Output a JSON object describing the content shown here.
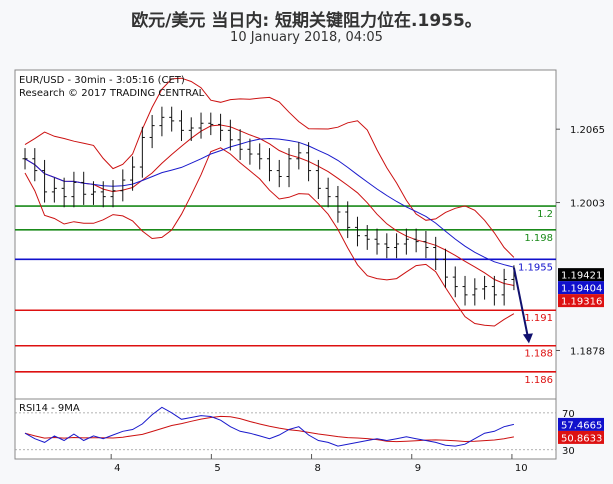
{
  "header": {
    "title": "欧元/美元 当日内: 短期关键阻力位在.1955。",
    "date": "10 January 2018, 04:05"
  },
  "chart_data": {
    "type": "candlestick",
    "symbol_line": "EUR/USD - 30min - 3:05:16 (CET)",
    "source_line": "Research © 2017 TRADING CENTRAL",
    "y_ticks": [
      "1.2065",
      "1.2003",
      "1.1878"
    ],
    "y_tick_values": [
      1.2065,
      1.2003,
      1.1878
    ],
    "ylim": [
      1.1837,
      1.2115
    ],
    "x_ticks": [
      "4",
      "5",
      "8",
      "9",
      "10"
    ],
    "x_tick_positions": [
      9.6,
      19.6,
      29.6,
      39.6,
      49.6
    ],
    "xlim": [
      0,
      54
    ],
    "levels": [
      {
        "label": "1.2",
        "value": 1.2,
        "color": "#1a8a1a"
      },
      {
        "label": "1.198",
        "value": 1.198,
        "color": "#1a8a1a"
      },
      {
        "label": "1.1955",
        "value": 1.1955,
        "color": "#1010cc"
      },
      {
        "label": "1.191",
        "value": 1.1912,
        "color": "#dd1111"
      },
      {
        "label": "1.188",
        "value": 1.1882,
        "color": "#dd1111"
      },
      {
        "label": "1.186",
        "value": 1.186,
        "color": "#dd1111"
      }
    ],
    "price_boxes": [
      {
        "label": "1.19421",
        "value": 1.19421,
        "bg": "#000000",
        "fg": "#ffffff"
      },
      {
        "label": "1.19404",
        "value": 1.19404,
        "bg": "#1010cc",
        "fg": "#ffffff"
      },
      {
        "label": "1.19316",
        "value": 1.19316,
        "bg": "#dd1111",
        "fg": "#ffffff"
      }
    ],
    "closes": [
      1.204,
      1.203,
      1.2012,
      1.2015,
      1.2008,
      1.202,
      1.201,
      1.2012,
      1.2008,
      1.2013,
      1.2022,
      1.2033,
      1.2058,
      1.2068,
      1.2075,
      1.2072,
      1.2064,
      1.2066,
      1.207,
      1.2069,
      1.2064,
      1.2056,
      1.2048,
      1.2044,
      1.204,
      1.203,
      1.2025,
      1.204,
      1.2045,
      1.203,
      1.2015,
      1.2008,
      1.1995,
      1.1982,
      1.1975,
      1.1972,
      1.1968,
      1.1965,
      1.1968,
      1.1972,
      1.197,
      1.1965,
      1.1955,
      1.194,
      1.1932,
      1.1925,
      1.193,
      1.1932,
      1.1925,
      1.1938,
      1.1941
    ],
    "projection": {
      "from_x": 49.8,
      "from_y": 1.1948,
      "to_x": 51.2,
      "to_y": 1.1884,
      "color": "#10106e"
    },
    "rsi": {
      "label": "RSI14 - 9MA",
      "ticks": [
        "70",
        "30"
      ],
      "tick_values": [
        70,
        30
      ],
      "ylim": [
        20,
        85
      ],
      "value_boxes": [
        {
          "label": "57.4665",
          "value": 57.4665,
          "bg": "#1010cc",
          "fg": "#ffffff"
        },
        {
          "label": "50.8633",
          "value": 50.8633,
          "bg": "#dd1111",
          "fg": "#ffffff"
        }
      ],
      "values": [
        48,
        42,
        38,
        45,
        40,
        47,
        40,
        45,
        42,
        46,
        50,
        52,
        58,
        68,
        76,
        70,
        63,
        65,
        67,
        66,
        62,
        55,
        50,
        48,
        45,
        42,
        46,
        52,
        55,
        46,
        40,
        38,
        34,
        36,
        38,
        40,
        42,
        40,
        42,
        44,
        42,
        40,
        38,
        35,
        34,
        36,
        42,
        48,
        50,
        55,
        57.5
      ]
    }
  }
}
